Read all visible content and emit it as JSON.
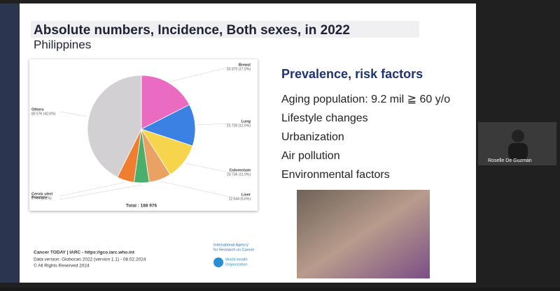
{
  "slide": {
    "title": "Absolute numbers, Incidence, Both sexes, in 2022",
    "subtitle": "Philippines",
    "heading": "Prevalence, risk factors",
    "bullets": [
      "Aging population:  9.2 mil ≧ 60 y/o",
      "Lifestyle changes",
      "Urbanization",
      "Air pollution",
      "Environmental factors"
    ],
    "footer": [
      "Cancer TODAY | IARC - https://gco.iarc.who.int",
      "Data version: Globocan 2022 (version 1.1) - 08.02.2024",
      "© All Rights Reserved 2024"
    ],
    "agency": [
      "International Agency",
      "for Research on Cancer",
      "World Health",
      "Organization"
    ]
  },
  "participant": {
    "name": "Roselle De Guzman"
  },
  "chart_data": {
    "type": "pie",
    "total_label": "Total : 188 976",
    "categories": [
      "Breast",
      "Lung",
      "Colorectum",
      "Liver",
      "Prostate",
      "Cervix uteri",
      "Others"
    ],
    "values": [
      33079,
      23728,
      20736,
      12544,
      8549,
      9764,
      80576
    ],
    "value_labels": [
      "33 079 (17.5%)",
      "23 728 (12.6%)",
      "20 736 (11.0%)",
      "12 544 (6.6%)",
      null,
      "9 764 (5.2%)",
      "80 576 (42.6%)"
    ],
    "colors": [
      "#e96cc2",
      "#3b80e3",
      "#f6d54c",
      "#e9a264",
      "#4cae6b",
      "#ef7e31",
      "#d2d0d3"
    ]
  }
}
